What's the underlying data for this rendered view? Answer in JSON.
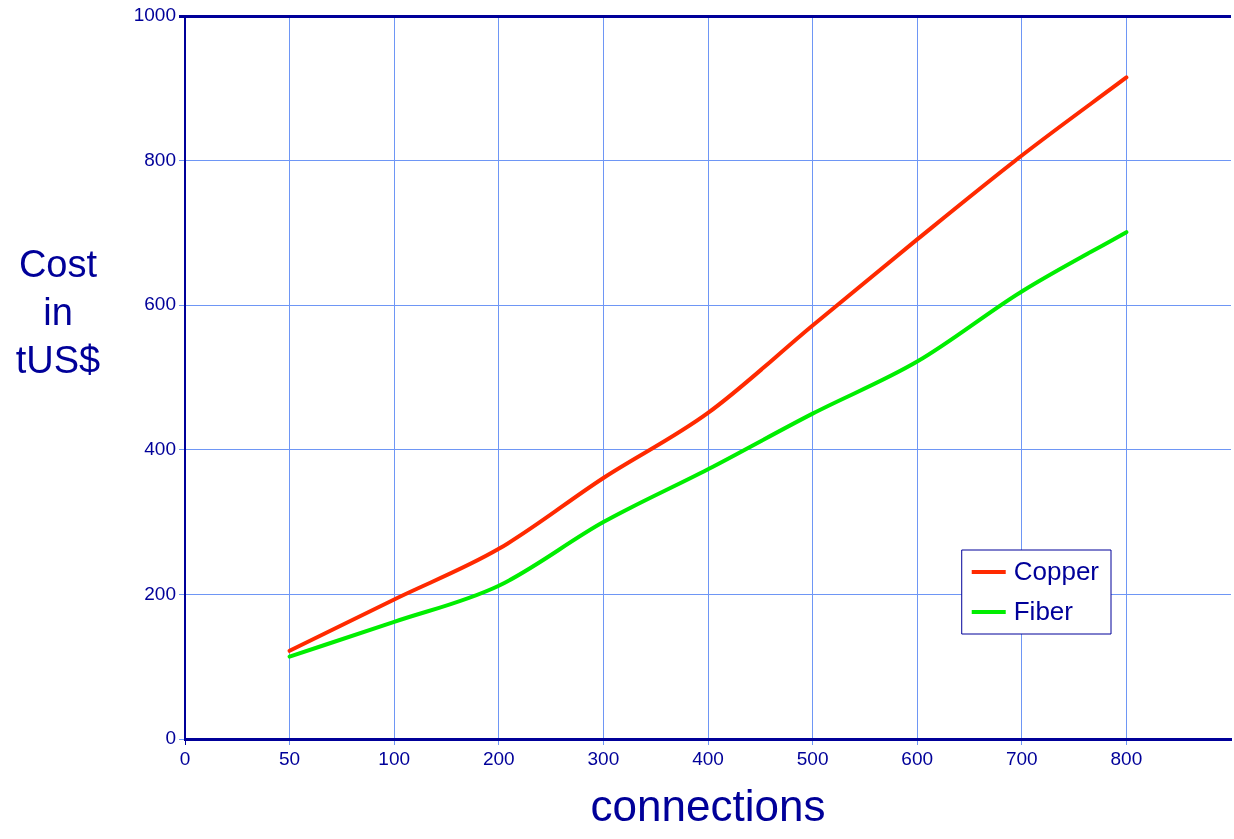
{
  "chart_data": {
    "type": "line",
    "xlabel": "connections",
    "ylabel": "Cost in tUS$",
    "categories": [
      "0",
      "50",
      "100",
      "200",
      "300",
      "400",
      "500",
      "600",
      "700",
      "800",
      null
    ],
    "series": [
      {
        "name": "Copper",
        "color": "#ff2a00",
        "values": [
          null,
          122,
          193,
          263,
          361,
          451,
          572,
          691,
          807,
          915,
          null
        ]
      },
      {
        "name": "Fiber",
        "color": "#00ee00",
        "values": [
          null,
          114,
          162,
          212,
          300,
          373,
          450,
          522,
          619,
          701,
          null
        ]
      }
    ],
    "ylim": [
      0,
      1000
    ],
    "yticks": [
      0,
      200,
      400,
      600,
      800,
      1000
    ],
    "grid": true,
    "legend": "bottom right",
    "marker": "none",
    "line_style": "solid"
  }
}
